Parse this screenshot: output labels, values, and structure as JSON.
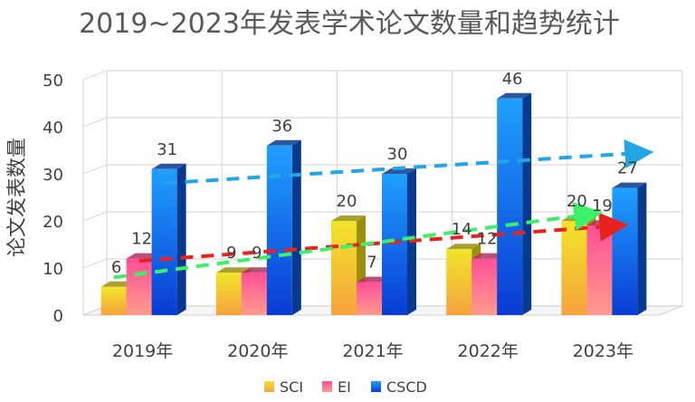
{
  "chart_data": {
    "type": "bar",
    "style": "3d-clustered-column",
    "title": "2019~2023年发表学术论文数量和趋势统计",
    "xlabel": "",
    "ylabel": "论文发表数量",
    "ylim": [
      0,
      50
    ],
    "yticks": [
      0,
      10,
      20,
      30,
      40,
      50
    ],
    "grid": true,
    "legend_position": "bottom",
    "categories": [
      "2019年",
      "2020年",
      "2021年",
      "2022年",
      "2023年"
    ],
    "series": [
      {
        "name": "SCI",
        "values": [
          6,
          9,
          20,
          14,
          20
        ],
        "color_top": "#f2e52a",
        "color_bottom": "#f6a23c",
        "side": "#9c8f10"
      },
      {
        "name": "EI",
        "values": [
          12,
          9,
          7,
          12,
          19
        ],
        "color_top": "#ff5fa2",
        "color_bottom": "#ff9a8a",
        "side": "#b0305e"
      },
      {
        "name": "CSCD",
        "values": [
          31,
          36,
          30,
          46,
          27
        ],
        "color_top": "#1f9bff",
        "color_bottom": "#0b3fd6",
        "side": "#073a8e"
      }
    ],
    "trend_arrows": [
      {
        "series": "CSCD",
        "color": "#22a6e8",
        "from": 28,
        "to": 34.5
      },
      {
        "series": "EI",
        "color": "#e8221f",
        "from": 11.5,
        "to": 19
      },
      {
        "series": "SCI",
        "color": "#3cf06a",
        "from": 8,
        "to": 21.5
      }
    ]
  }
}
